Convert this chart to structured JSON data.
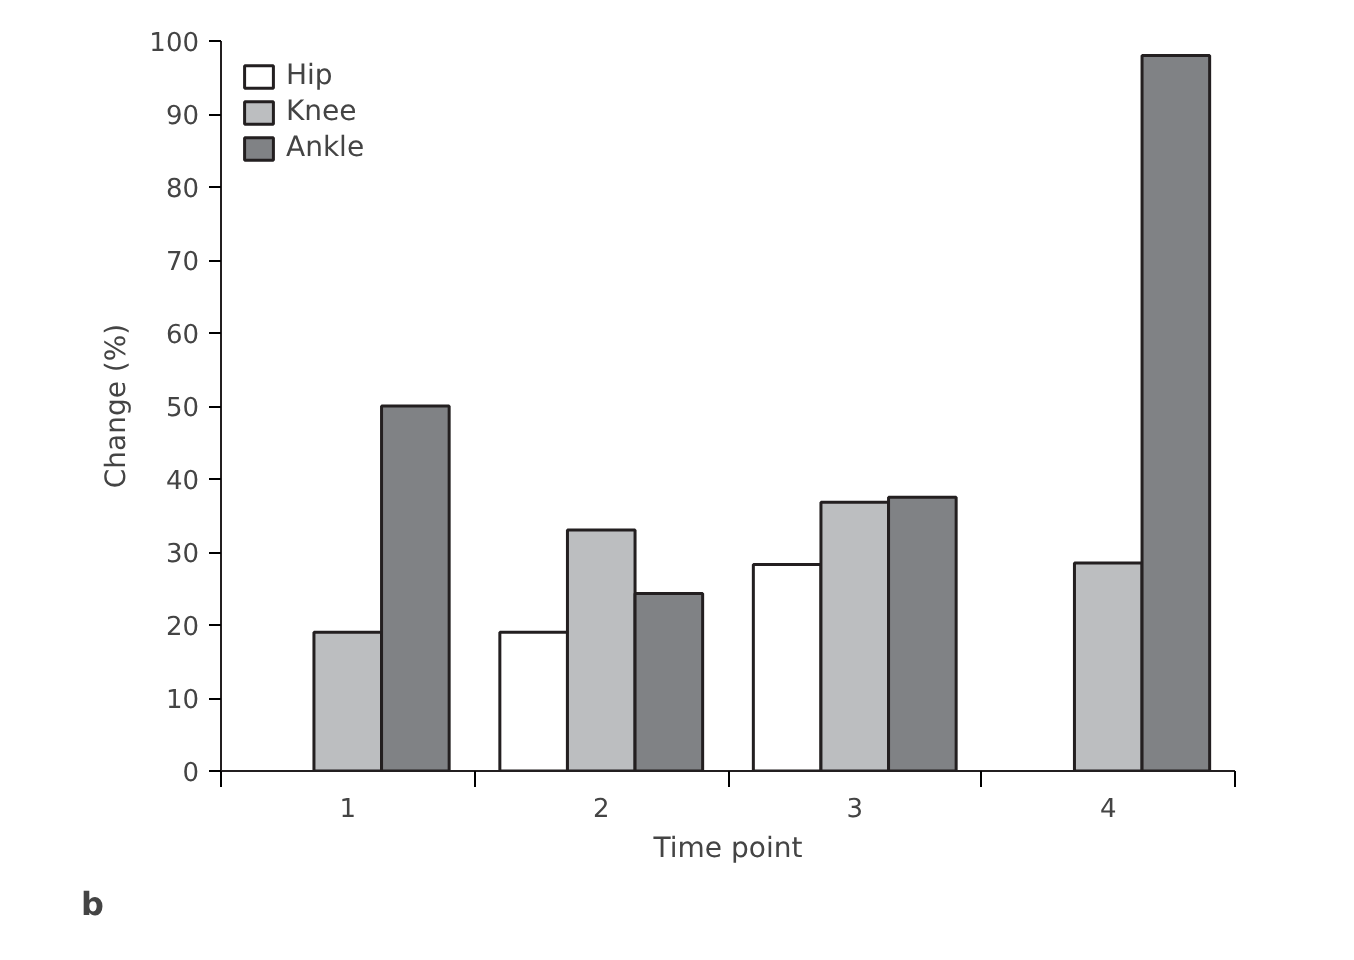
{
  "chart_data": {
    "type": "bar",
    "xlabel": "Time point",
    "ylabel": "Change (%)",
    "categories": [
      "1",
      "2",
      "3",
      "4"
    ],
    "series": [
      {
        "name": "Hip",
        "color": "#ffffff",
        "values": [
          null,
          19,
          28.3,
          null
        ]
      },
      {
        "name": "Knee",
        "color": "#bcbec0",
        "values": [
          19,
          33,
          36.8,
          28.5
        ]
      },
      {
        "name": "Ankle",
        "color": "#808285",
        "values": [
          50,
          24.3,
          37.5,
          98
        ]
      }
    ],
    "ylim": [
      0,
      100
    ],
    "yticks": [
      0,
      10,
      20,
      30,
      40,
      50,
      60,
      70,
      80,
      90,
      100
    ],
    "grid": false,
    "legend": "top left",
    "annotations": [
      "b"
    ]
  }
}
